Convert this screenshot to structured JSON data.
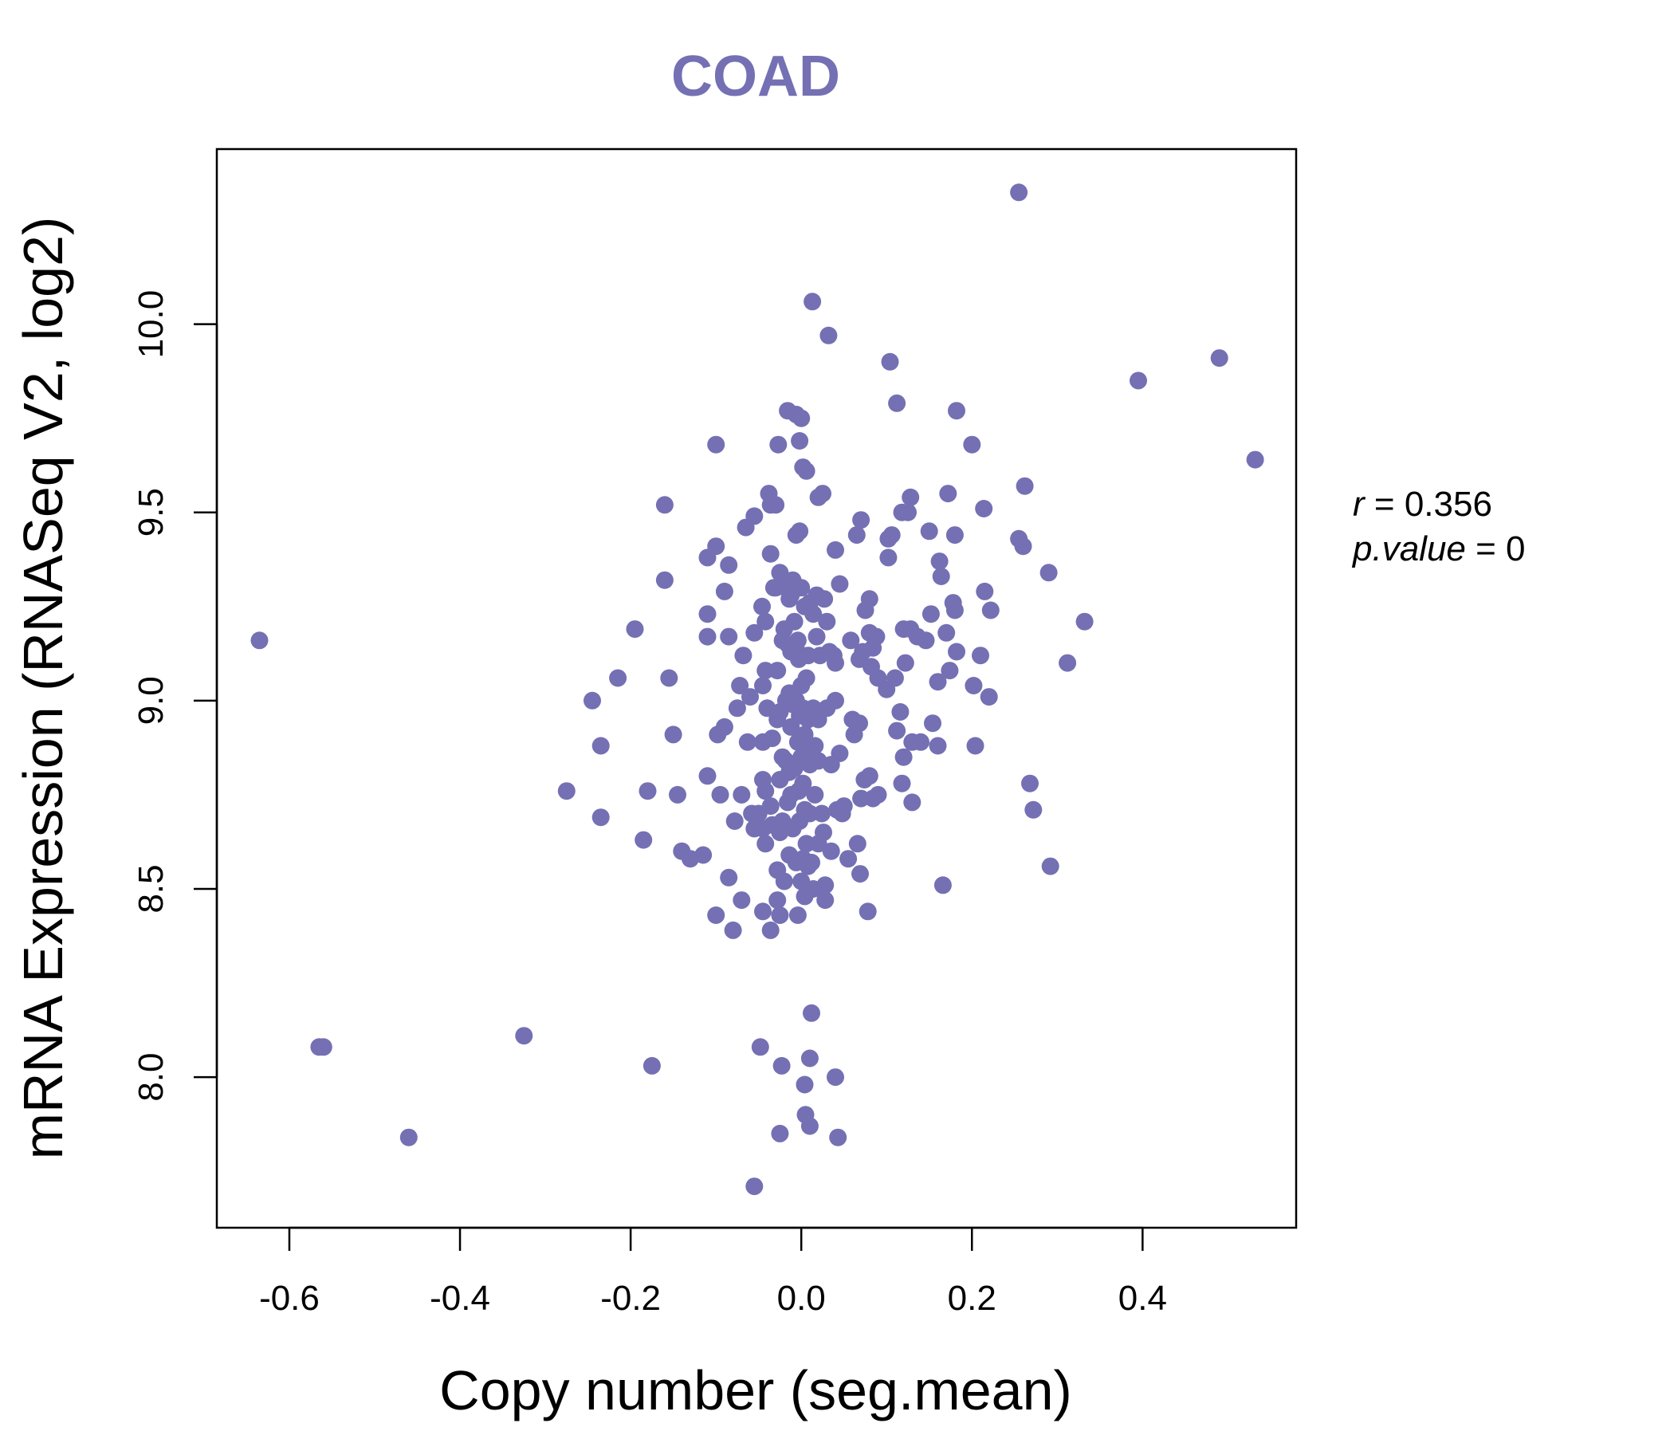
{
  "chart_data": {
    "type": "scatter",
    "title": "COAD",
    "xlabel": "Copy number (seg.mean)",
    "ylabel": "mRNA Expression (RNASeq V2, log2)",
    "xlim": [
      -0.685,
      0.58
    ],
    "ylim": [
      7.6,
      10.465
    ],
    "xticks": [
      -0.6,
      -0.4,
      -0.2,
      0.0,
      0.2,
      0.4
    ],
    "xtick_labels": [
      "-0.6",
      "-0.4",
      "-0.2",
      "0.0",
      "0.2",
      "0.4"
    ],
    "yticks": [
      8.0,
      8.5,
      9.0,
      9.5,
      10.0
    ],
    "ytick_labels": [
      "8.0",
      "8.5",
      "9.0",
      "9.5",
      "10.0"
    ],
    "point_color": "#7470b3",
    "grid": false,
    "stats": {
      "r_label": "r",
      "r_value": "0.356",
      "p_label": "p.value",
      "p_value": "0"
    },
    "points": [
      [
        -0.635,
        9.16
      ],
      [
        -0.565,
        8.08
      ],
      [
        -0.56,
        8.08
      ],
      [
        -0.46,
        7.84
      ],
      [
        -0.325,
        8.11
      ],
      [
        -0.275,
        8.76
      ],
      [
        -0.245,
        9.0
      ],
      [
        -0.235,
        8.88
      ],
      [
        -0.235,
        8.69
      ],
      [
        -0.215,
        9.06
      ],
      [
        -0.195,
        9.19
      ],
      [
        -0.185,
        8.63
      ],
      [
        -0.18,
        8.76
      ],
      [
        -0.175,
        8.03
      ],
      [
        -0.16,
        9.52
      ],
      [
        -0.16,
        9.32
      ],
      [
        -0.155,
        9.06
      ],
      [
        -0.15,
        8.91
      ],
      [
        -0.145,
        8.75
      ],
      [
        -0.14,
        8.6
      ],
      [
        -0.13,
        8.58
      ],
      [
        -0.115,
        8.59
      ],
      [
        -0.11,
        8.8
      ],
      [
        -0.11,
        9.38
      ],
      [
        -0.11,
        9.23
      ],
      [
        -0.11,
        9.17
      ],
      [
        -0.1,
        9.68
      ],
      [
        -0.1,
        9.41
      ],
      [
        -0.1,
        8.43
      ],
      [
        -0.098,
        8.91
      ],
      [
        -0.095,
        8.75
      ],
      [
        -0.09,
        9.29
      ],
      [
        -0.09,
        8.93
      ],
      [
        -0.085,
        9.36
      ],
      [
        -0.085,
        9.17
      ],
      [
        -0.085,
        8.53
      ],
      [
        -0.08,
        8.39
      ],
      [
        -0.078,
        8.68
      ],
      [
        -0.075,
        8.98
      ],
      [
        -0.072,
        9.04
      ],
      [
        -0.07,
        8.75
      ],
      [
        -0.07,
        8.47
      ],
      [
        -0.068,
        9.12
      ],
      [
        -0.065,
        9.46
      ],
      [
        -0.063,
        8.89
      ],
      [
        -0.06,
        9.01
      ],
      [
        -0.058,
        8.7
      ],
      [
        -0.055,
        9.49
      ],
      [
        -0.055,
        9.18
      ],
      [
        -0.055,
        8.66
      ],
      [
        -0.055,
        7.71
      ],
      [
        -0.05,
        8.7
      ],
      [
        -0.048,
        8.08
      ],
      [
        -0.046,
        9.25
      ],
      [
        -0.045,
        9.04
      ],
      [
        -0.045,
        8.89
      ],
      [
        -0.045,
        8.79
      ],
      [
        -0.045,
        8.66
      ],
      [
        -0.045,
        8.44
      ],
      [
        -0.042,
        9.21
      ],
      [
        -0.042,
        9.08
      ],
      [
        -0.042,
        8.76
      ],
      [
        -0.042,
        8.62
      ],
      [
        -0.04,
        8.98
      ],
      [
        -0.038,
        9.55
      ],
      [
        -0.036,
        9.52
      ],
      [
        -0.036,
        9.39
      ],
      [
        -0.036,
        8.72
      ],
      [
        -0.036,
        8.39
      ],
      [
        -0.034,
        8.67
      ],
      [
        -0.034,
        8.9
      ],
      [
        -0.032,
        9.3
      ],
      [
        -0.03,
        9.52
      ],
      [
        -0.03,
        9.3
      ],
      [
        -0.028,
        9.08
      ],
      [
        -0.028,
        8.95
      ],
      [
        -0.028,
        8.55
      ],
      [
        -0.028,
        8.47
      ],
      [
        -0.027,
        9.68
      ],
      [
        -0.025,
        9.34
      ],
      [
        -0.025,
        8.97
      ],
      [
        -0.025,
        8.79
      ],
      [
        -0.025,
        8.65
      ],
      [
        -0.025,
        8.43
      ],
      [
        -0.025,
        7.85
      ],
      [
        -0.023,
        8.03
      ],
      [
        -0.022,
        9.16
      ],
      [
        -0.022,
        8.85
      ],
      [
        -0.022,
        8.68
      ],
      [
        -0.02,
        9.19
      ],
      [
        -0.02,
        8.52
      ],
      [
        -0.018,
        9.3
      ],
      [
        -0.018,
        9.0
      ],
      [
        -0.018,
        8.84
      ],
      [
        -0.016,
        9.77
      ],
      [
        -0.016,
        9.15
      ],
      [
        -0.016,
        8.73
      ],
      [
        -0.014,
        9.27
      ],
      [
        -0.014,
        9.02
      ],
      [
        -0.014,
        8.81
      ],
      [
        -0.014,
        8.59
      ],
      [
        -0.012,
        9.28
      ],
      [
        -0.012,
        9.13
      ],
      [
        -0.012,
        8.93
      ],
      [
        -0.012,
        8.75
      ],
      [
        -0.01,
        9.32
      ],
      [
        -0.01,
        8.99
      ],
      [
        -0.01,
        8.66
      ],
      [
        -0.008,
        9.21
      ],
      [
        -0.008,
        8.82
      ],
      [
        -0.006,
        9.76
      ],
      [
        -0.006,
        9.44
      ],
      [
        -0.006,
        9.0
      ],
      [
        -0.006,
        8.57
      ],
      [
        -0.004,
        9.16
      ],
      [
        -0.004,
        8.89
      ],
      [
        -0.004,
        8.43
      ],
      [
        -0.003,
        9.11
      ],
      [
        -0.003,
        8.76
      ],
      [
        -0.002,
        9.69
      ],
      [
        -0.002,
        9.45
      ],
      [
        -0.002,
        8.96
      ],
      [
        -0.002,
        8.68
      ],
      [
        0.0,
        9.75
      ],
      [
        0.0,
        9.3
      ],
      [
        0.0,
        9.04
      ],
      [
        0.0,
        8.85
      ],
      [
        0.0,
        8.52
      ],
      [
        0.002,
        9.62
      ],
      [
        0.002,
        9.12
      ],
      [
        0.002,
        8.98
      ],
      [
        0.002,
        8.78
      ],
      [
        0.002,
        8.58
      ],
      [
        0.004,
        9.25
      ],
      [
        0.004,
        8.91
      ],
      [
        0.004,
        8.71
      ],
      [
        0.004,
        8.48
      ],
      [
        0.004,
        7.98
      ],
      [
        0.005,
        7.9
      ],
      [
        0.006,
        9.61
      ],
      [
        0.006,
        9.06
      ],
      [
        0.006,
        8.87
      ],
      [
        0.006,
        8.62
      ],
      [
        0.008,
        9.12
      ],
      [
        0.008,
        8.95
      ],
      [
        0.008,
        8.56
      ],
      [
        0.01,
        9.26
      ],
      [
        0.01,
        8.83
      ],
      [
        0.01,
        8.7
      ],
      [
        0.01,
        8.05
      ],
      [
        0.01,
        7.87
      ],
      [
        0.012,
        8.17
      ],
      [
        0.012,
        8.57
      ],
      [
        0.013,
        10.06
      ],
      [
        0.014,
        9.23
      ],
      [
        0.014,
        8.98
      ],
      [
        0.014,
        8.5
      ],
      [
        0.016,
        8.88
      ],
      [
        0.016,
        8.75
      ],
      [
        0.018,
        9.28
      ],
      [
        0.018,
        9.17
      ],
      [
        0.02,
        9.54
      ],
      [
        0.02,
        8.95
      ],
      [
        0.02,
        8.84
      ],
      [
        0.02,
        8.62
      ],
      [
        0.022,
        9.12
      ],
      [
        0.024,
        8.7
      ],
      [
        0.025,
        9.55
      ],
      [
        0.026,
        8.65
      ],
      [
        0.027,
        9.27
      ],
      [
        0.028,
        8.47
      ],
      [
        0.028,
        8.51
      ],
      [
        0.03,
        9.21
      ],
      [
        0.03,
        8.98
      ],
      [
        0.032,
        9.97
      ],
      [
        0.033,
        9.13
      ],
      [
        0.035,
        8.83
      ],
      [
        0.035,
        8.6
      ],
      [
        0.038,
        9.12
      ],
      [
        0.04,
        9.4
      ],
      [
        0.04,
        9.1
      ],
      [
        0.04,
        9.0
      ],
      [
        0.04,
        8.0
      ],
      [
        0.042,
        8.71
      ],
      [
        0.043,
        7.84
      ],
      [
        0.045,
        9.31
      ],
      [
        0.045,
        8.86
      ],
      [
        0.048,
        8.7
      ],
      [
        0.05,
        8.72
      ],
      [
        0.055,
        8.58
      ],
      [
        0.058,
        9.16
      ],
      [
        0.06,
        8.95
      ],
      [
        0.062,
        8.91
      ],
      [
        0.065,
        9.44
      ],
      [
        0.066,
        8.62
      ],
      [
        0.068,
        9.11
      ],
      [
        0.068,
        8.94
      ],
      [
        0.069,
        8.54
      ],
      [
        0.07,
        9.48
      ],
      [
        0.07,
        8.74
      ],
      [
        0.072,
        9.13
      ],
      [
        0.074,
        8.79
      ],
      [
        0.075,
        9.24
      ],
      [
        0.078,
        8.44
      ],
      [
        0.08,
        9.27
      ],
      [
        0.08,
        9.18
      ],
      [
        0.08,
        8.8
      ],
      [
        0.082,
        9.09
      ],
      [
        0.084,
        9.14
      ],
      [
        0.084,
        8.74
      ],
      [
        0.088,
        9.17
      ],
      [
        0.09,
        9.06
      ],
      [
        0.09,
        8.75
      ],
      [
        0.1,
        9.03
      ],
      [
        0.102,
        9.43
      ],
      [
        0.102,
        9.38
      ],
      [
        0.104,
        9.9
      ],
      [
        0.106,
        9.44
      ],
      [
        0.11,
        9.06
      ],
      [
        0.112,
        9.79
      ],
      [
        0.112,
        8.92
      ],
      [
        0.116,
        8.97
      ],
      [
        0.118,
        9.5
      ],
      [
        0.118,
        8.78
      ],
      [
        0.12,
        9.19
      ],
      [
        0.12,
        8.85
      ],
      [
        0.122,
        9.1
      ],
      [
        0.125,
        9.5
      ],
      [
        0.128,
        9.54
      ],
      [
        0.128,
        9.19
      ],
      [
        0.13,
        8.89
      ],
      [
        0.13,
        8.73
      ],
      [
        0.136,
        9.17
      ],
      [
        0.14,
        8.89
      ],
      [
        0.146,
        9.16
      ],
      [
        0.15,
        9.45
      ],
      [
        0.152,
        9.23
      ],
      [
        0.154,
        8.94
      ],
      [
        0.16,
        9.05
      ],
      [
        0.16,
        8.88
      ],
      [
        0.162,
        9.37
      ],
      [
        0.164,
        9.33
      ],
      [
        0.166,
        8.51
      ],
      [
        0.17,
        9.18
      ],
      [
        0.172,
        9.55
      ],
      [
        0.174,
        9.08
      ],
      [
        0.178,
        9.26
      ],
      [
        0.18,
        9.44
      ],
      [
        0.18,
        9.24
      ],
      [
        0.182,
        9.13
      ],
      [
        0.182,
        9.77
      ],
      [
        0.2,
        9.68
      ],
      [
        0.202,
        9.04
      ],
      [
        0.204,
        8.88
      ],
      [
        0.21,
        9.12
      ],
      [
        0.214,
        9.51
      ],
      [
        0.215,
        9.29
      ],
      [
        0.22,
        9.01
      ],
      [
        0.222,
        9.24
      ],
      [
        0.255,
        10.35
      ],
      [
        0.255,
        9.43
      ],
      [
        0.26,
        9.41
      ],
      [
        0.262,
        9.57
      ],
      [
        0.268,
        8.78
      ],
      [
        0.272,
        8.71
      ],
      [
        0.29,
        9.34
      ],
      [
        0.292,
        8.56
      ],
      [
        0.312,
        9.1
      ],
      [
        0.332,
        9.21
      ],
      [
        0.395,
        9.85
      ],
      [
        0.49,
        9.91
      ],
      [
        0.532,
        9.64
      ]
    ]
  }
}
